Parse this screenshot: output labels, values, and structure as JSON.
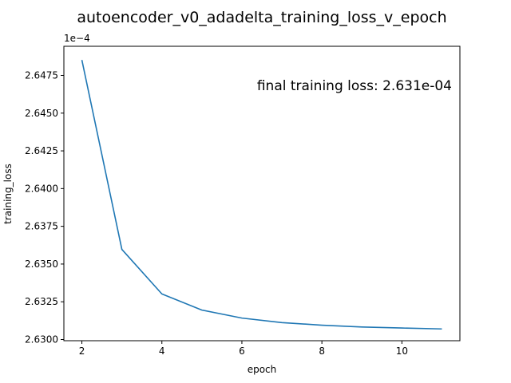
{
  "chart_data": {
    "type": "line",
    "title": "autoencoder_v0_adadelta_training_loss_v_epoch",
    "xlabel": "epoch",
    "ylabel": "training_loss",
    "y_offset_label": "1e−4",
    "annotation": "final training loss: 2.631e-04",
    "grid": false,
    "xlim": [
      1.55,
      11.45
    ],
    "ylim": [
      2.62992,
      2.64943
    ],
    "x_ticks": [
      2,
      4,
      6,
      8,
      10
    ],
    "x_tick_labels": [
      "2",
      "4",
      "6",
      "8",
      "10"
    ],
    "y_ticks": [
      2.63,
      2.6325,
      2.635,
      2.6375,
      2.64,
      2.6425,
      2.645,
      2.6475
    ],
    "y_tick_labels": [
      "2.6300",
      "2.6325",
      "2.6350",
      "2.6375",
      "2.6400",
      "2.6425",
      "2.6450",
      "2.6475"
    ],
    "series": [
      {
        "color": "#1f77b4",
        "x": [
          2,
          3,
          4,
          5,
          6,
          7,
          8,
          9,
          10,
          11
        ],
        "y": [
          2.64852,
          2.63597,
          2.63302,
          2.63195,
          2.63142,
          2.63112,
          2.63095,
          2.63083,
          2.63076,
          2.6307
        ]
      }
    ]
  }
}
